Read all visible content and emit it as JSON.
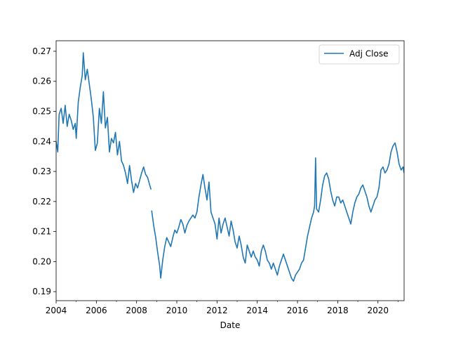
{
  "chart_data": {
    "type": "line",
    "title": "",
    "xlabel": "Date",
    "ylabel": "",
    "xlim": [
      2004.0,
      2021.3
    ],
    "ylim": [
      0.187,
      0.2735
    ],
    "grid": false,
    "legend_position": "top-right",
    "x_ticks": [
      {
        "value": 2004,
        "label": "2004"
      },
      {
        "value": 2006,
        "label": "2006"
      },
      {
        "value": 2008,
        "label": "2008"
      },
      {
        "value": 2010,
        "label": "2010"
      },
      {
        "value": 2012,
        "label": "2012"
      },
      {
        "value": 2014,
        "label": "2014"
      },
      {
        "value": 2016,
        "label": "2016"
      },
      {
        "value": 2018,
        "label": "2018"
      },
      {
        "value": 2020,
        "label": "2020"
      }
    ],
    "y_ticks": [
      {
        "value": 0.19,
        "label": "0.19"
      },
      {
        "value": 0.2,
        "label": "0.20"
      },
      {
        "value": 0.21,
        "label": "0.21"
      },
      {
        "value": 0.22,
        "label": "0.22"
      },
      {
        "value": 0.23,
        "label": "0.23"
      },
      {
        "value": 0.24,
        "label": "0.24"
      },
      {
        "value": 0.25,
        "label": "0.25"
      },
      {
        "value": 0.26,
        "label": "0.26"
      },
      {
        "value": 0.27,
        "label": "0.27"
      }
    ],
    "series": [
      {
        "name": "Adj Close",
        "color": "#1f77b4",
        "points": [
          [
            2004.0,
            0.24
          ],
          [
            2004.08,
            0.2365
          ],
          [
            2004.15,
            0.249
          ],
          [
            2004.25,
            0.251
          ],
          [
            2004.35,
            0.246
          ],
          [
            2004.45,
            0.252
          ],
          [
            2004.55,
            0.245
          ],
          [
            2004.65,
            0.249
          ],
          [
            2004.75,
            0.247
          ],
          [
            2004.85,
            0.244
          ],
          [
            2004.95,
            0.246
          ],
          [
            2005.0,
            0.241
          ],
          [
            2005.1,
            0.253
          ],
          [
            2005.2,
            0.258
          ],
          [
            2005.3,
            0.262
          ],
          [
            2005.35,
            0.2695
          ],
          [
            2005.45,
            0.2605
          ],
          [
            2005.55,
            0.264
          ],
          [
            2005.65,
            0.259
          ],
          [
            2005.75,
            0.254
          ],
          [
            2005.85,
            0.248
          ],
          [
            2005.95,
            0.237
          ],
          [
            2006.05,
            0.2395
          ],
          [
            2006.15,
            0.251
          ],
          [
            2006.25,
            0.246
          ],
          [
            2006.35,
            0.2565
          ],
          [
            2006.45,
            0.2445
          ],
          [
            2006.55,
            0.248
          ],
          [
            2006.65,
            0.2365
          ],
          [
            2006.75,
            0.241
          ],
          [
            2006.85,
            0.2395
          ],
          [
            2006.95,
            0.243
          ],
          [
            2007.05,
            0.2355
          ],
          [
            2007.15,
            0.24
          ],
          [
            2007.25,
            0.2335
          ],
          [
            2007.35,
            0.232
          ],
          [
            2007.45,
            0.2295
          ],
          [
            2007.55,
            0.226
          ],
          [
            2007.65,
            0.232
          ],
          [
            2007.75,
            0.227
          ],
          [
            2007.85,
            0.223
          ],
          [
            2007.95,
            0.226
          ],
          [
            2008.05,
            0.2245
          ],
          [
            2008.15,
            0.227
          ],
          [
            2008.25,
            0.2295
          ],
          [
            2008.35,
            0.2315
          ],
          [
            2008.45,
            0.229
          ],
          [
            2008.55,
            0.228
          ],
          [
            2008.65,
            0.2255
          ],
          [
            2008.72,
            0.224
          ],
          [
            2008.75,
            0.217
          ],
          [
            2008.85,
            0.212
          ],
          [
            2008.95,
            0.208
          ],
          [
            2009.05,
            0.203
          ],
          [
            2009.15,
            0.1985
          ],
          [
            2009.2,
            0.1945
          ],
          [
            2009.3,
            0.2005
          ],
          [
            2009.4,
            0.205
          ],
          [
            2009.5,
            0.208
          ],
          [
            2009.6,
            0.2065
          ],
          [
            2009.7,
            0.205
          ],
          [
            2009.8,
            0.208
          ],
          [
            2009.9,
            0.2105
          ],
          [
            2010.0,
            0.2095
          ],
          [
            2010.1,
            0.2115
          ],
          [
            2010.2,
            0.214
          ],
          [
            2010.3,
            0.2125
          ],
          [
            2010.4,
            0.2095
          ],
          [
            2010.5,
            0.212
          ],
          [
            2010.6,
            0.2135
          ],
          [
            2010.7,
            0.2145
          ],
          [
            2010.8,
            0.2155
          ],
          [
            2010.9,
            0.2145
          ],
          [
            2011.0,
            0.2165
          ],
          [
            2011.1,
            0.2215
          ],
          [
            2011.2,
            0.2255
          ],
          [
            2011.3,
            0.229
          ],
          [
            2011.4,
            0.2245
          ],
          [
            2011.5,
            0.2205
          ],
          [
            2011.6,
            0.2265
          ],
          [
            2011.7,
            0.2165
          ],
          [
            2011.8,
            0.2145
          ],
          [
            2011.9,
            0.2125
          ],
          [
            2012.0,
            0.2075
          ],
          [
            2012.1,
            0.2145
          ],
          [
            2012.2,
            0.2095
          ],
          [
            2012.3,
            0.2125
          ],
          [
            2012.4,
            0.2145
          ],
          [
            2012.5,
            0.2115
          ],
          [
            2012.6,
            0.2085
          ],
          [
            2012.7,
            0.2135
          ],
          [
            2012.8,
            0.2105
          ],
          [
            2012.9,
            0.2065
          ],
          [
            2013.0,
            0.2045
          ],
          [
            2013.1,
            0.2085
          ],
          [
            2013.2,
            0.2055
          ],
          [
            2013.3,
            0.2015
          ],
          [
            2013.4,
            0.1995
          ],
          [
            2013.5,
            0.2055
          ],
          [
            2013.6,
            0.2035
          ],
          [
            2013.7,
            0.2015
          ],
          [
            2013.8,
            0.2035
          ],
          [
            2013.9,
            0.2015
          ],
          [
            2014.0,
            0.2005
          ],
          [
            2014.1,
            0.1985
          ],
          [
            2014.2,
            0.2035
          ],
          [
            2014.3,
            0.2055
          ],
          [
            2014.4,
            0.2035
          ],
          [
            2014.5,
            0.2005
          ],
          [
            2014.6,
            0.1995
          ],
          [
            2014.7,
            0.1975
          ],
          [
            2014.8,
            0.1995
          ],
          [
            2014.9,
            0.1975
          ],
          [
            2015.0,
            0.1955
          ],
          [
            2015.1,
            0.1985
          ],
          [
            2015.2,
            0.2005
          ],
          [
            2015.3,
            0.2025
          ],
          [
            2015.4,
            0.2005
          ],
          [
            2015.5,
            0.1985
          ],
          [
            2015.6,
            0.1965
          ],
          [
            2015.7,
            0.1945
          ],
          [
            2015.8,
            0.1935
          ],
          [
            2015.9,
            0.1955
          ],
          [
            2016.0,
            0.1965
          ],
          [
            2016.1,
            0.1975
          ],
          [
            2016.2,
            0.1995
          ],
          [
            2016.3,
            0.2005
          ],
          [
            2016.4,
            0.2045
          ],
          [
            2016.5,
            0.2085
          ],
          [
            2016.6,
            0.2115
          ],
          [
            2016.7,
            0.2145
          ],
          [
            2016.8,
            0.2165
          ],
          [
            2016.85,
            0.2185
          ],
          [
            2016.9,
            0.2345
          ],
          [
            2016.95,
            0.2175
          ],
          [
            2017.05,
            0.2165
          ],
          [
            2017.15,
            0.2205
          ],
          [
            2017.25,
            0.2255
          ],
          [
            2017.35,
            0.2285
          ],
          [
            2017.45,
            0.2295
          ],
          [
            2017.55,
            0.2275
          ],
          [
            2017.65,
            0.2235
          ],
          [
            2017.75,
            0.2205
          ],
          [
            2017.85,
            0.2185
          ],
          [
            2017.95,
            0.2215
          ],
          [
            2018.05,
            0.2215
          ],
          [
            2018.15,
            0.2195
          ],
          [
            2018.25,
            0.2205
          ],
          [
            2018.35,
            0.2185
          ],
          [
            2018.45,
            0.2165
          ],
          [
            2018.55,
            0.2145
          ],
          [
            2018.65,
            0.2125
          ],
          [
            2018.75,
            0.2165
          ],
          [
            2018.85,
            0.2195
          ],
          [
            2018.95,
            0.2215
          ],
          [
            2019.05,
            0.2225
          ],
          [
            2019.15,
            0.2245
          ],
          [
            2019.25,
            0.2255
          ],
          [
            2019.35,
            0.2235
          ],
          [
            2019.45,
            0.2215
          ],
          [
            2019.55,
            0.2185
          ],
          [
            2019.65,
            0.2165
          ],
          [
            2019.75,
            0.2185
          ],
          [
            2019.85,
            0.2205
          ],
          [
            2019.95,
            0.2215
          ],
          [
            2020.05,
            0.2245
          ],
          [
            2020.15,
            0.2305
          ],
          [
            2020.25,
            0.2315
          ],
          [
            2020.35,
            0.2295
          ],
          [
            2020.45,
            0.2305
          ],
          [
            2020.55,
            0.2325
          ],
          [
            2020.65,
            0.2365
          ],
          [
            2020.75,
            0.2385
          ],
          [
            2020.85,
            0.2395
          ],
          [
            2020.95,
            0.2365
          ],
          [
            2021.05,
            0.2325
          ],
          [
            2021.15,
            0.2305
          ],
          [
            2021.25,
            0.2315
          ],
          [
            2021.3,
            0.2295
          ]
        ]
      }
    ]
  }
}
